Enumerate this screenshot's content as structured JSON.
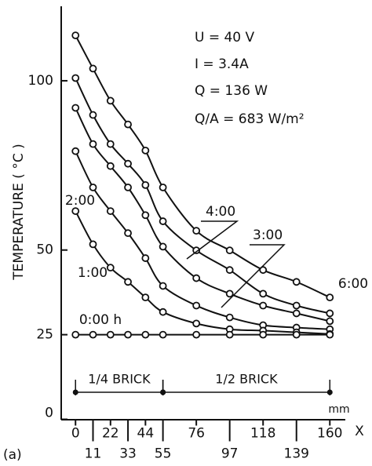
{
  "chart_data": {
    "type": "line",
    "panel_label": "(a)",
    "ylabel": "TEMPERATURE ( °C )",
    "xlabel": "X",
    "xunit": "mm",
    "annotations": [
      "U = 40 V",
      "I = 3.4A",
      "Q = 136 W",
      "Q/A = 683 W/m²"
    ],
    "x": [
      0,
      11,
      22,
      33,
      44,
      55,
      76,
      97,
      118,
      139,
      160
    ],
    "series": [
      {
        "name": "6:00",
        "color": "#111111",
        "values": [
          113.4,
          103.6,
          94.1,
          87.1,
          79.4,
          68.5,
          55.7,
          49.9,
          44.1,
          40.6,
          36.0
        ]
      },
      {
        "name": "4:00",
        "color": "#111111",
        "values": [
          100.8,
          89.9,
          81.3,
          75.5,
          69.2,
          58.5,
          49.9,
          44.1,
          37.1,
          33.6,
          31.3
        ]
      },
      {
        "name": "3:00",
        "color": "#111111",
        "values": [
          92.0,
          81.3,
          74.8,
          68.5,
          60.3,
          51.0,
          41.7,
          37.1,
          33.6,
          31.3,
          29.0
        ]
      },
      {
        "name": "2:00",
        "color": "#111111",
        "values": [
          79.2,
          68.5,
          61.5,
          55.0,
          47.6,
          39.4,
          33.6,
          30.1,
          27.8,
          27.1,
          26.6
        ]
      },
      {
        "name": "1:00",
        "color": "#111111",
        "values": [
          61.5,
          51.7,
          44.8,
          40.6,
          36.0,
          31.7,
          28.3,
          26.6,
          26.2,
          25.7,
          25.2
        ]
      },
      {
        "name": "0:00 h",
        "color": "#111111",
        "values": [
          25,
          25,
          25,
          25,
          25,
          25,
          25,
          25,
          25,
          25,
          25
        ]
      }
    ],
    "segments": [
      {
        "label": "1/4 BRICK",
        "from": 0,
        "to": 55
      },
      {
        "label": "1/2 BRICK",
        "from": 55,
        "to": 160
      }
    ],
    "xlim": [
      -9,
      169
    ],
    "ylim": [
      0,
      122
    ],
    "xticks": [
      0,
      11,
      22,
      33,
      44,
      55,
      76,
      97,
      118,
      139,
      160
    ],
    "yticks": [
      0,
      25,
      50,
      100
    ]
  }
}
